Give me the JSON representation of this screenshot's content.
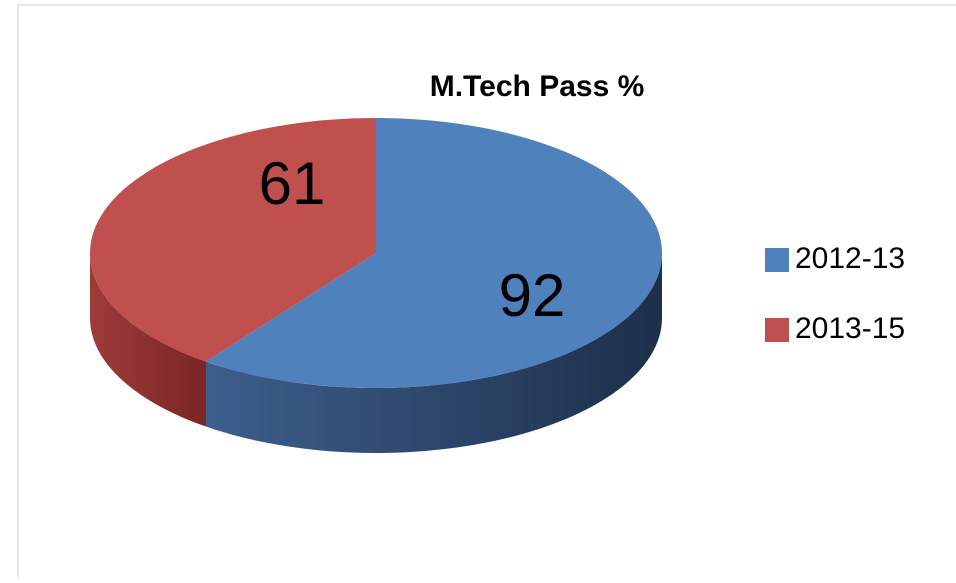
{
  "chart_data": {
    "type": "pie",
    "title": "M.Tech Pass %",
    "categories": [
      "2012-13",
      "2013-15"
    ],
    "values": [
      92,
      61
    ],
    "colors": [
      "#4f81bd",
      "#c0504d"
    ],
    "legend": "right"
  }
}
